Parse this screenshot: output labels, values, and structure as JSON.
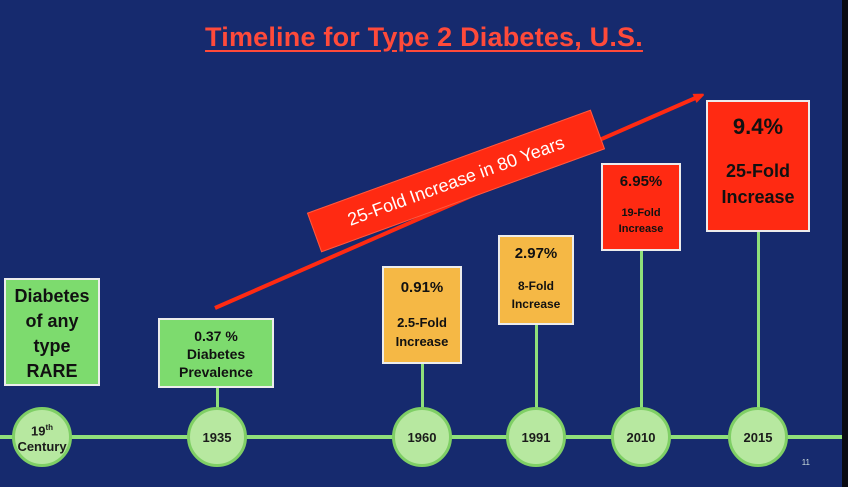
{
  "title": "Timeline for Type 2 Diabetes, U.S.",
  "banner": "25-Fold Increase in 80 Years",
  "page_number": "11",
  "colors": {
    "background": "#162a6e",
    "title": "#ff4a3a",
    "green": "#7ddb6e",
    "yellow": "#f5b845",
    "red": "#ff2a12",
    "timeline": "#8fe07a"
  },
  "events": [
    {
      "year": "19",
      "year_sup": "th",
      "year_suffix": "Century",
      "lines": [
        "Diabetes",
        "of any",
        "type",
        "RARE"
      ]
    },
    {
      "year": "1935",
      "lines": [
        "0.37 %",
        "Diabetes",
        "Prevalence"
      ]
    },
    {
      "year": "1960",
      "value": "0.91%",
      "note": [
        "2.5-Fold",
        "Increase"
      ]
    },
    {
      "year": "1991",
      "value": "2.97%",
      "note": [
        "8-Fold",
        "Increase"
      ]
    },
    {
      "year": "2010",
      "value": "6.95%",
      "note": [
        "19-Fold",
        "Increase"
      ]
    },
    {
      "year": "2015",
      "value": "9.4%",
      "note": [
        "25-Fold",
        "Increase"
      ]
    }
  ]
}
